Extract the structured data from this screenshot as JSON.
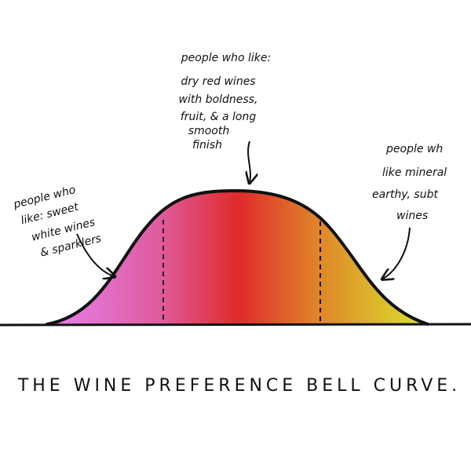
{
  "annotations": [
    {
      "lines": [
        "people who like:",
        "dry red wines",
        "with boldness,",
        "fruit, & a long",
        "smooth",
        "finish"
      ]
    },
    {
      "lines": [
        "people who",
        "like: sweet",
        "white wines",
        "& sparklers"
      ]
    },
    {
      "lines": [
        "people wh",
        "like mineral",
        "earthy, subt",
        "wines"
      ]
    }
  ],
  "title": "THE WINE PREFERENCE BELL CURVE."
}
